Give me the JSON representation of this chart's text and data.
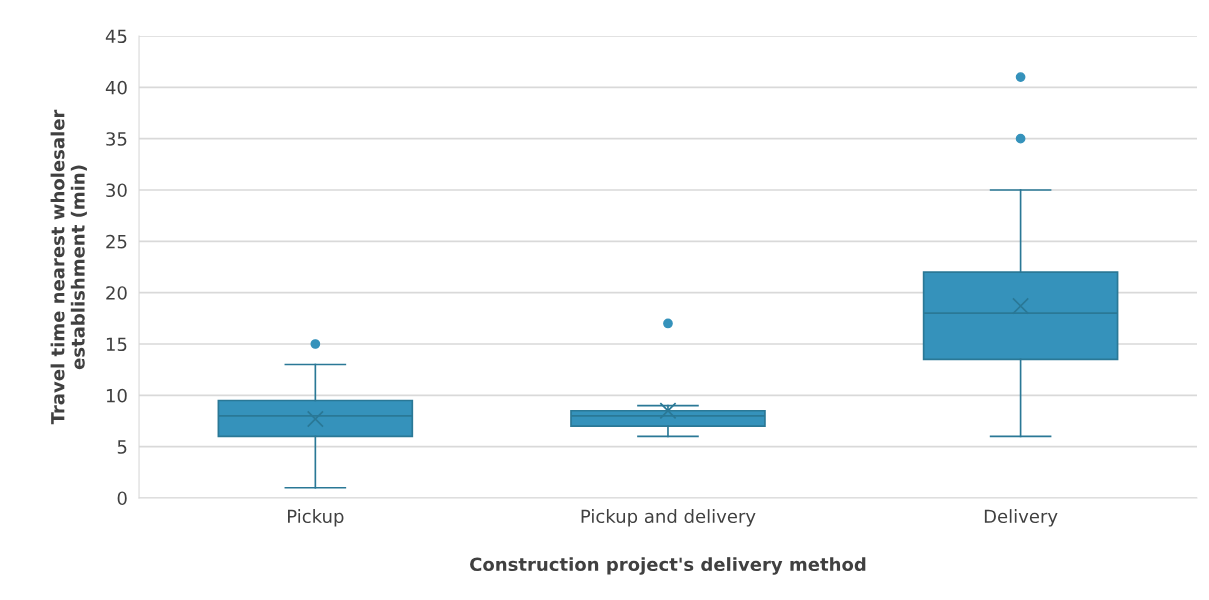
{
  "chart_data": {
    "type": "box",
    "xlabel": "Construction project's delivery method",
    "ylabel": "Travel time nearest wholesaler\nestablishment (min)",
    "categories": [
      "Pickup",
      "Pickup and delivery",
      "Delivery"
    ],
    "boxes": [
      {
        "low": 1,
        "q1": 6,
        "median": 8,
        "q3": 9.5,
        "high": 13,
        "mean": 7.7,
        "outliers": [
          15
        ]
      },
      {
        "low": 6,
        "q1": 7,
        "median": 8,
        "q3": 8.5,
        "high": 9,
        "mean": 8.5,
        "outliers": [
          17
        ]
      },
      {
        "low": 6,
        "q1": 13.5,
        "median": 18,
        "q3": 22,
        "high": 30,
        "mean": 18.7,
        "outliers": [
          35,
          41
        ]
      }
    ],
    "color": "#3592bb",
    "ylim": [
      0,
      45
    ],
    "yticks": [
      0,
      5,
      10,
      15,
      20,
      25,
      30,
      35,
      40,
      45
    ],
    "grid": "y"
  }
}
